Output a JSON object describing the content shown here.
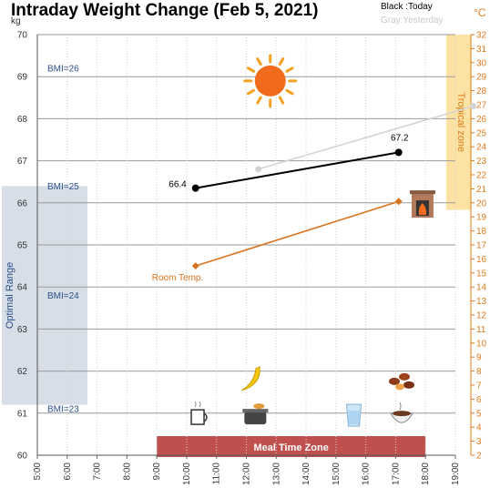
{
  "chart_data": {
    "type": "line",
    "title": "Intraday Weight Change (Feb 5, 2021)",
    "left_axis": {
      "unit": "kg",
      "range": [
        60,
        70
      ],
      "ticks": [
        "60",
        "61",
        "62",
        "63",
        "64",
        "65",
        "66",
        "67",
        "68",
        "69",
        "70"
      ]
    },
    "right_axis": {
      "unit": "°C",
      "range": [
        2,
        32
      ],
      "ticks": [
        "2",
        "3",
        "4",
        "5",
        "6",
        "7",
        "8",
        "9",
        "10",
        "11",
        "12",
        "13",
        "14",
        "15",
        "16",
        "17",
        "18",
        "19",
        "20",
        "21",
        "22",
        "23",
        "24",
        "25",
        "26",
        "27",
        "28",
        "29",
        "30",
        "31",
        "32"
      ]
    },
    "x_axis": {
      "range": [
        5,
        19
      ],
      "ticks": [
        "5:00",
        "6:00",
        "7:00",
        "8:00",
        "9:00",
        "10:00",
        "11:00",
        "12:00",
        "13:00",
        "14:00",
        "15:00",
        "16:00",
        "17:00",
        "18:00",
        "19:00"
      ]
    },
    "legend": {
      "today": "Black :Today",
      "yesterday": "Gray:Yesterday"
    },
    "series": [
      {
        "key": "today",
        "color": "#000000",
        "axis": "left",
        "points": [
          [
            10.3,
            66.35
          ],
          [
            17.1,
            67.2
          ]
        ],
        "labels": [
          "66.4",
          "67.2"
        ]
      },
      {
        "key": "yesterday",
        "color": "#d4d4d4",
        "axis": "left",
        "points": [
          [
            12.4,
            66.8
          ],
          [
            19.6,
            68.3
          ]
        ]
      },
      {
        "key": "room-temp",
        "label": "Room Temp.",
        "color": "#d8731f",
        "axis": "right",
        "points": [
          [
            10.3,
            15.5
          ],
          [
            17.1,
            20.1
          ]
        ]
      }
    ],
    "bmi_lines": [
      {
        "label": "BMI=26",
        "value": 69.2
      },
      {
        "label": "BMI=25",
        "value": 66.4
      },
      {
        "label": "BMI=24",
        "value": 63.8
      },
      {
        "label": "BMI=23",
        "value": 61.1
      }
    ],
    "zones": [
      {
        "label": "Optimal Range",
        "from": 61.2,
        "to": 66.4,
        "axis": "left",
        "color": "#d7dee8"
      },
      {
        "label": "Tropical zone",
        "from": 19.5,
        "to": 32,
        "axis": "right",
        "color": "#fde3a3"
      },
      {
        "label": "Meal Time Zone",
        "from": 9,
        "to": 18,
        "axis": "x",
        "color": "#c0504d"
      }
    ],
    "icons": [
      {
        "name": "sun-icon",
        "x": 12.8,
        "y": 68.9
      },
      {
        "name": "fireplace-icon",
        "x": 17.9,
        "y": 65.95
      },
      {
        "name": "banana-icon",
        "x": 12.2,
        "y": 61.8
      },
      {
        "name": "dates-icon",
        "x": 17.2,
        "y": 61.8
      },
      {
        "name": "cup-icon",
        "x": 10.4,
        "y": 60.95
      },
      {
        "name": "pot-icon",
        "x": 12.3,
        "y": 60.95
      },
      {
        "name": "glass-icon",
        "x": 15.6,
        "y": 60.95
      },
      {
        "name": "bowl-icon",
        "x": 17.2,
        "y": 60.95
      }
    ]
  }
}
